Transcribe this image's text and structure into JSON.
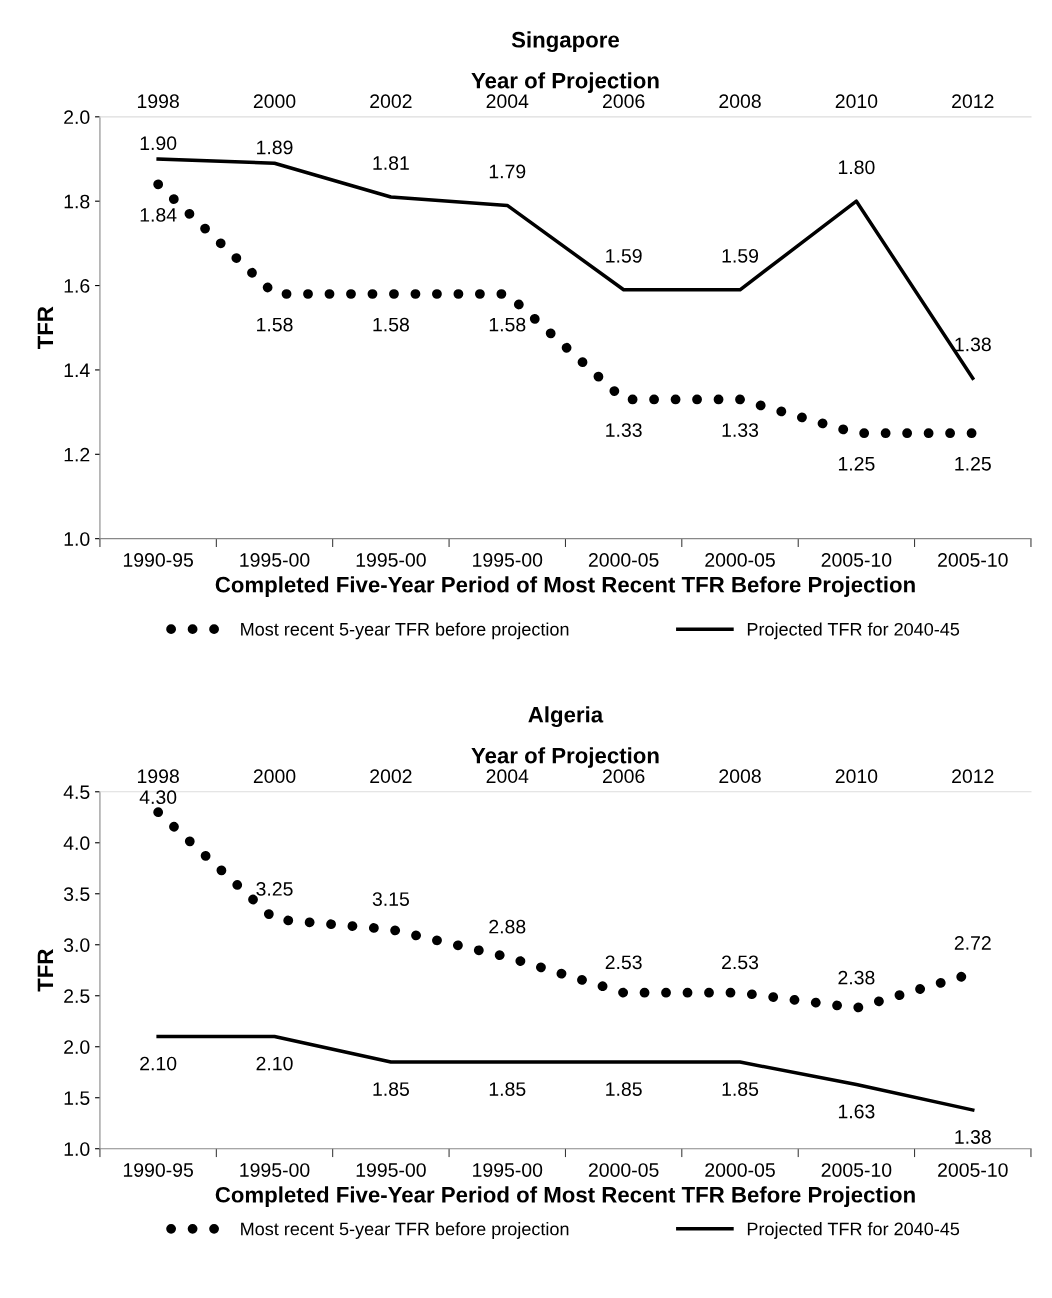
{
  "chart_data": [
    {
      "type": "line",
      "title": "Singapore",
      "x2label": "Year of Projection",
      "xlabel": "Completed Five-Year Period of Most Recent TFR Before Projection",
      "ylabel": "TFR",
      "categories": [
        "1990-95",
        "1995-00",
        "1995-00",
        "1995-00",
        "2000-05",
        "2000-05",
        "2005-10",
        "2005-10"
      ],
      "x2lim": [
        1997,
        2013
      ],
      "x2ticks": [
        1998,
        2000,
        2002,
        2004,
        2006,
        2008,
        2010,
        2012
      ],
      "ylim": [
        1.0,
        2.0
      ],
      "yticks": [
        {
          "value": 1,
          "label": "1.0"
        },
        1.2,
        1.4,
        1.6,
        1.8,
        {
          "value": 2,
          "label": "2.0"
        }
      ],
      "grid": false,
      "legend": "bottom",
      "series": [
        {
          "name": "Most recent 5-year TFR before projection",
          "color": "#000000",
          "line_style": "dotted",
          "values": [
            1.84,
            1.58,
            1.58,
            1.58,
            1.33,
            1.33,
            1.25,
            1.25
          ],
          "value_labels": [
            "1.84",
            "1.58",
            "1.58",
            "1.58",
            "1.33",
            "1.33",
            "1.25",
            "1.25"
          ]
        },
        {
          "name": "Projected TFR for 2040-45",
          "color": "#000000",
          "line_style": "solid",
          "values": [
            1.9,
            1.89,
            1.81,
            1.79,
            1.59,
            1.59,
            1.8,
            1.38
          ],
          "value_labels": [
            "1.90",
            "1.89",
            "1.81",
            "1.79",
            "1.59",
            "1.59",
            "1.80",
            "1.38"
          ]
        }
      ]
    },
    {
      "type": "line",
      "title": "Algeria",
      "x2label": "Year of Projection",
      "xlabel": "Completed Five-Year Period of Most Recent TFR Before Projection",
      "ylabel": "TFR",
      "categories": [
        "1990-95",
        "1995-00",
        "1995-00",
        "1995-00",
        "2000-05",
        "2000-05",
        "2005-10",
        "2005-10"
      ],
      "x2lim": [
        1997,
        2013
      ],
      "x2ticks": [
        1998,
        2000,
        2002,
        2004,
        2006,
        2008,
        2010,
        2012
      ],
      "ylim": [
        1.0,
        4.5
      ],
      "yticks": [
        {
          "value": 1,
          "label": "1.0"
        },
        1.5,
        {
          "value": 2,
          "label": "2.0"
        },
        2.5,
        {
          "value": 3,
          "label": "3.0"
        },
        3.5,
        {
          "value": 4,
          "label": "4.0"
        },
        4.5
      ],
      "grid": false,
      "legend": "bottom",
      "series": [
        {
          "name": "Most recent 5-year TFR before projection",
          "color": "#000000",
          "line_style": "dotted",
          "values": [
            4.3,
            3.25,
            3.15,
            2.88,
            2.53,
            2.53,
            2.38,
            2.72
          ],
          "value_labels": [
            "4.30",
            "3.25",
            "3.15",
            "2.88",
            "2.53",
            "2.53",
            "2.38",
            "2.72"
          ]
        },
        {
          "name": "Projected TFR for 2040-45",
          "color": "#000000",
          "line_style": "solid",
          "values": [
            2.1,
            2.1,
            1.85,
            1.85,
            1.85,
            1.85,
            1.63,
            1.38
          ],
          "value_labels": [
            "2.10",
            "2.10",
            "1.85",
            "1.85",
            "1.85",
            "1.85",
            "1.63",
            "1.38"
          ]
        }
      ]
    }
  ]
}
